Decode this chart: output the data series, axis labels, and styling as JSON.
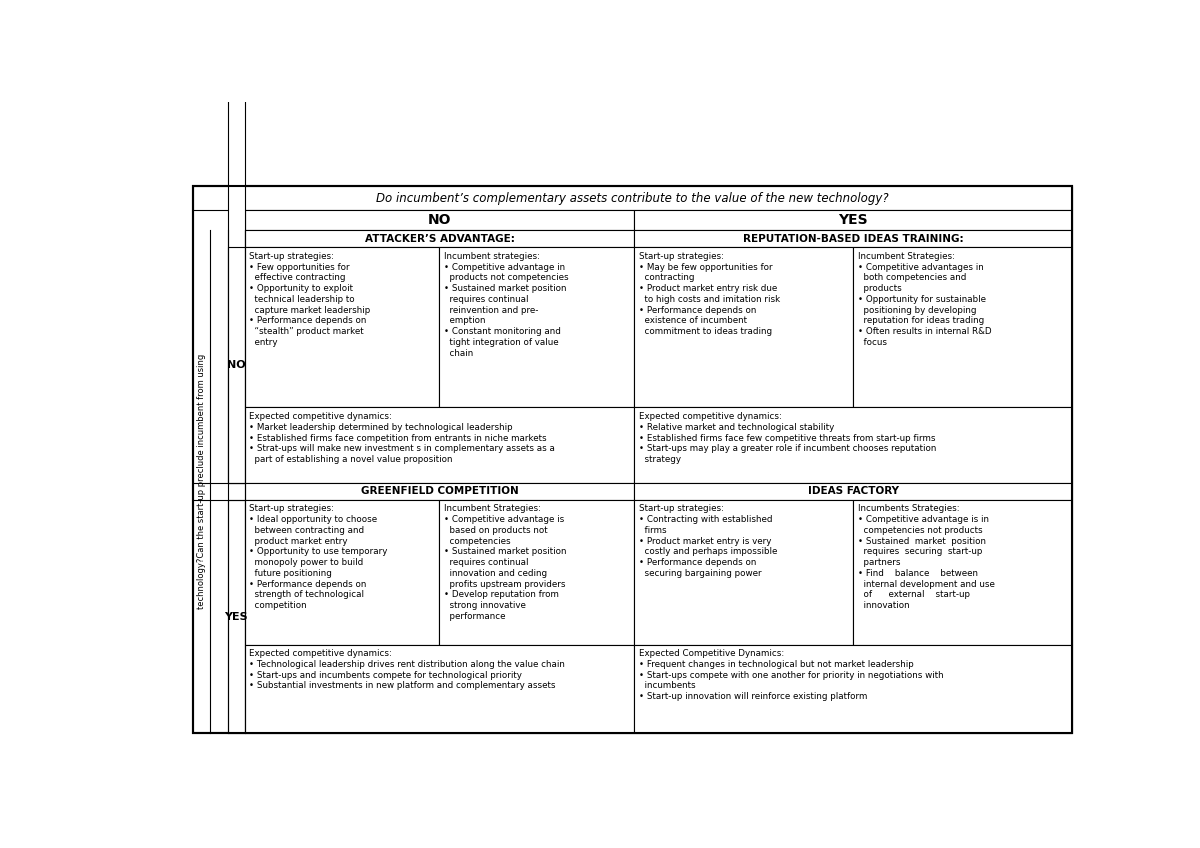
{
  "title": "Do incumbent’s complementary assets contribute to the value of the new technology?",
  "col_header_no": "NO",
  "col_header_yes": "YES",
  "section_header_attacker": "ATTACKER’S ADVANTAGE:",
  "section_header_reputation": "REPUTATION-BASED IDEAS TRAINING:",
  "section_header_greenfield": "GREENFIELD COMPETITION",
  "section_header_ideas": "IDEAS FACTORY",
  "row_label_no": "NO",
  "row_label_yes": "YES",
  "y_axis_label": "technology?Can the start-up preclude incumbent from using",
  "no_startup": "Start-up strategies:\n• Few opportunities for\n  effective contracting\n• Opportunity to exploit\n  technical leadership to\n  capture market leadership\n• Performance depends on\n  “stealth” product market\n  entry",
  "no_incumbent": "Incumbent strategies:\n• Competitive advantage in\n  products not competencies\n• Sustained market position\n  requires continual\n  reinvention and pre-\n  emption\n• Constant monitoring and\n  tight integration of value\n  chain",
  "no_dynamics": "Expected competitive dynamics:\n• Market leadership determined by technological leadership\n• Established firms face competition from entrants in niche markets\n• Strat-ups will make new investment s in complementary assets as a\n  part of establishing a novel value proposition",
  "yes_no_startup": "Start-up strategies:\n• May be few opportunities for\n  contracting\n• Product market entry risk due\n  to high costs and imitation risk\n• Performance depends on\n  existence of incumbent\n  commitment to ideas trading",
  "yes_no_incumbent": "Incumbent Strategies:\n• Competitive advantages in\n  both competencies and\n  products\n• Opportunity for sustainable\n  positioning by developing\n  reputation for ideas trading\n• Often results in internal R&D\n  focus",
  "yes_no_dynamics": "Expected competitive dynamics:\n• Relative market and technological stability\n• Established firms face few competitive threats from start-up firms\n• Start-ups may play a greater role if incumbent chooses reputation\n  strategy",
  "yes_yes_startup": "Start-up strategies:\n• Ideal opportunity to choose\n  between contracting and\n  product market entry\n• Opportunity to use temporary\n  monopoly power to build\n  future positioning\n• Performance depends on\n  strength of technological\n  competition",
  "yes_yes_incumbent": "Incumbent Strategies:\n• Competitive advantage is\n  based on products not\n  competencies\n• Sustained market position\n  requires continual\n  innovation and ceding\n  profits upstream providers\n• Develop reputation from\n  strong innovative\n  performance",
  "yes_yes_dynamics": "Expected competitive dynamics:\n• Technological leadership drives rent distribution along the value chain\n• Start-ups and incumbents compete for technological priority\n• Substantial investments in new platform and complementary assets",
  "yes_yes2_startup": "Start-up strategies:\n• Contracting with established\n  firms\n• Product market entry is very\n  costly and perhaps impossible\n• Performance depends on\n  securing bargaining power",
  "yes_yes2_incumbent": "Incumbents Strategies:\n• Competitive advantage is in\n  competencies not products\n• Sustained  market  position\n  requires  securing  start-up\n  partners\n• Find    balance    between\n  internal development and use\n  of      external    start-up\n  innovation",
  "yes_yes2_dynamics": "Expected Competitive Dynamics:\n• Frequent changes in technological but not market leadership\n• Start-ups compete with one another for priority in negotiations with\n  incumbents\n• Start-up innovation will reinforce existing platform",
  "bg_color": "#ffffff"
}
